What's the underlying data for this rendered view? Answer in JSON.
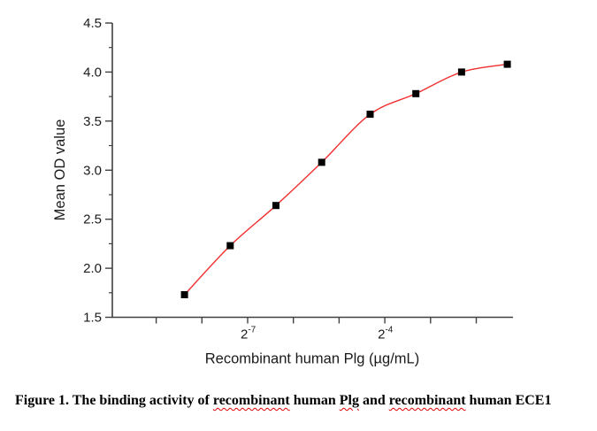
{
  "chart_data": {
    "type": "line",
    "title": "",
    "xlabel": "Recombinant human Plg (µg/mL)",
    "ylabel": "Mean OD value",
    "x_scale": "log2",
    "x": [
      0.003,
      0.006,
      0.012,
      0.024,
      0.05,
      0.1,
      0.2,
      0.4
    ],
    "y": [
      1.73,
      2.23,
      2.64,
      3.08,
      3.57,
      3.78,
      4.0,
      4.08
    ],
    "series_name": "Mean OD value",
    "ylim": [
      1.5,
      4.5
    ],
    "y_ticks": [
      1.5,
      2.0,
      2.5,
      3.0,
      3.5,
      4.0,
      4.5
    ],
    "y_minor_ticks": [
      1.75,
      2.25,
      2.75,
      3.25,
      3.75,
      4.25
    ],
    "x_tick_exponents": [
      -9,
      -8,
      -7,
      -6,
      -5,
      -4,
      -3,
      -2
    ],
    "x_tick_labels": [
      null,
      null,
      {
        "base": "2",
        "exp": "-7"
      },
      null,
      null,
      {
        "base": "2",
        "exp": "-4"
      },
      null,
      null
    ],
    "grid": false,
    "legend": "none",
    "line_color": "#f03030",
    "marker_color": "#000000",
    "marker_shape": "square",
    "axis_color": "#404040"
  },
  "caption": {
    "parts": [
      {
        "text": "Figure 1. The binding activity of ",
        "misspelled": false
      },
      {
        "text": "recombinant",
        "misspelled": true
      },
      {
        "text": " human ",
        "misspelled": false
      },
      {
        "text": "Plg",
        "misspelled": true
      },
      {
        "text": " and ",
        "misspelled": false
      },
      {
        "text": "recombinant",
        "misspelled": true
      },
      {
        "text": " human ECE1",
        "misspelled": false
      }
    ]
  }
}
